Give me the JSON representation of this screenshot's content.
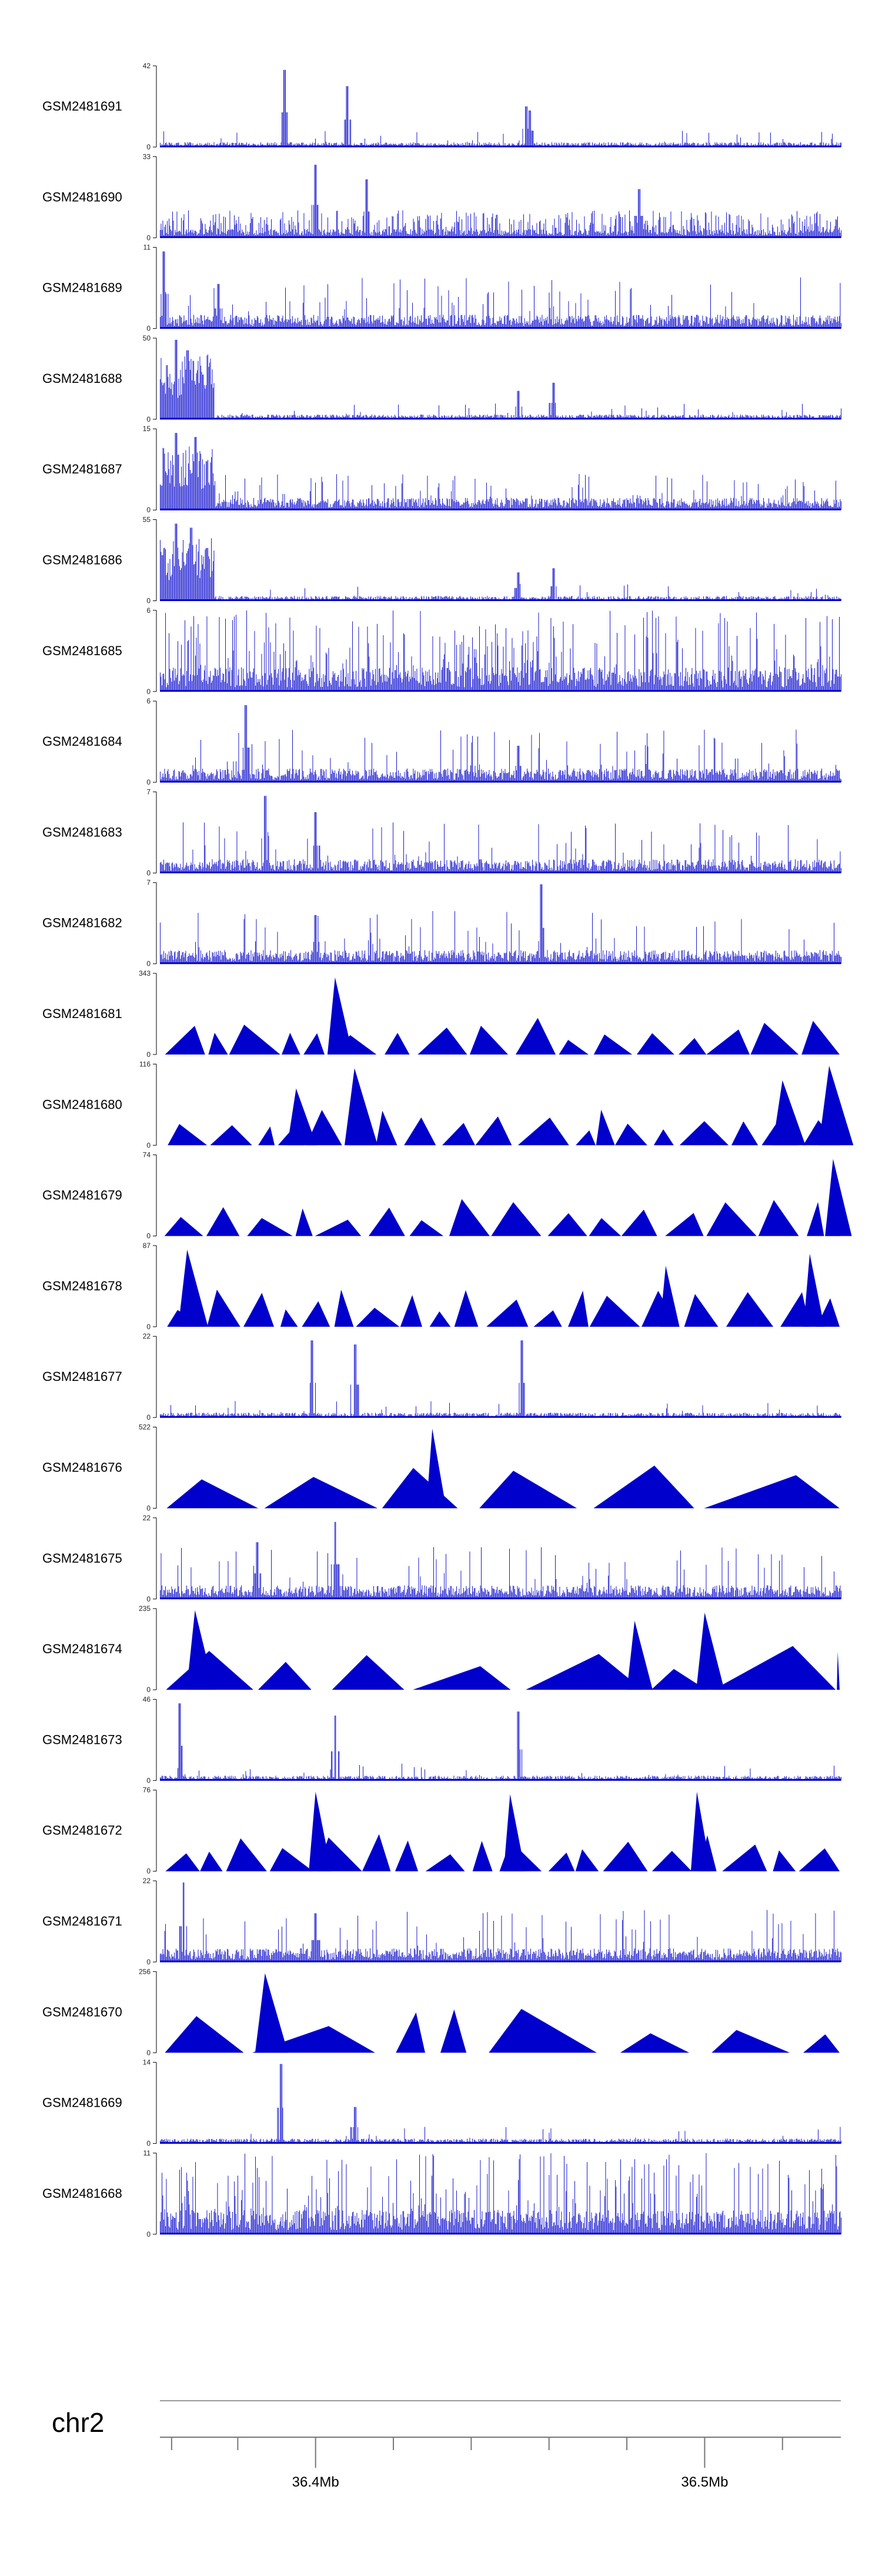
{
  "chart_data": {
    "type": "area",
    "description_kind": "genome coverage tracks",
    "series_color": "#0000cc",
    "chromosome": "chr2",
    "x_axis": {
      "range": [
        36.36,
        36.535
      ],
      "unit": "Mb",
      "major_ticks": [
        {
          "pos": 36.4,
          "label": "36.4Mb"
        },
        {
          "pos": 36.5,
          "label": "36.5Mb"
        }
      ],
      "minor_ticks": [
        36.363,
        36.38,
        36.42,
        36.44,
        36.46,
        36.48,
        36.52
      ]
    },
    "tracks": [
      {
        "name": "GSM2481691",
        "ymax": 42,
        "pattern": "sparse",
        "seed": 11,
        "peaks": [
          [
            36.392,
            0.95
          ],
          [
            36.408,
            0.75
          ],
          [
            36.454,
            0.5
          ],
          [
            36.455,
            0.45
          ]
        ]
      },
      {
        "name": "GSM2481690",
        "ymax": 33,
        "pattern": "dense",
        "seed": 12,
        "peaks": [
          [
            36.4,
            0.9
          ],
          [
            36.413,
            0.72
          ],
          [
            36.483,
            0.6
          ]
        ]
      },
      {
        "name": "GSM2481689",
        "ymax": 11,
        "pattern": "mid",
        "seed": 13,
        "peaks": [
          [
            36.361,
            0.95
          ],
          [
            36.375,
            0.55
          ]
        ]
      },
      {
        "name": "GSM2481688",
        "ymax": 50,
        "pattern": "cluster",
        "seed": 14,
        "peaks": [
          [
            36.364,
            0.98
          ],
          [
            36.367,
            0.85
          ],
          [
            36.371,
            0.55
          ],
          [
            36.452,
            0.35
          ],
          [
            36.461,
            0.45
          ]
        ]
      },
      {
        "name": "GSM2481687",
        "ymax": 15,
        "pattern": "cluster-dense",
        "seed": 15,
        "peaks": [
          [
            36.364,
            0.95
          ],
          [
            36.369,
            0.9
          ],
          [
            36.372,
            0.6
          ]
        ]
      },
      {
        "name": "GSM2481686",
        "ymax": 55,
        "pattern": "cluster",
        "seed": 16,
        "peaks": [
          [
            36.364,
            0.95
          ],
          [
            36.368,
            0.9
          ],
          [
            36.372,
            0.65
          ],
          [
            36.452,
            0.35
          ],
          [
            36.461,
            0.4
          ]
        ]
      },
      {
        "name": "GSM2481685",
        "ymax": 6,
        "pattern": "spiky",
        "seed": 17,
        "peaks": []
      },
      {
        "name": "GSM2481684",
        "ymax": 6,
        "pattern": "mid",
        "seed": 18,
        "peaks": [
          [
            36.382,
            0.95
          ],
          [
            36.452,
            0.45
          ]
        ]
      },
      {
        "name": "GSM2481683",
        "ymax": 7,
        "pattern": "mid",
        "seed": 19,
        "peaks": [
          [
            36.387,
            0.95
          ],
          [
            36.4,
            0.75
          ]
        ]
      },
      {
        "name": "GSM2481682",
        "ymax": 7,
        "pattern": "mid",
        "seed": 20,
        "peaks": [
          [
            36.458,
            0.98
          ],
          [
            36.4,
            0.6
          ]
        ]
      },
      {
        "name": "GSM2481681",
        "ymax": 343,
        "pattern": "tri",
        "seed": 21,
        "peaks": [
          [
            36.405,
            0.95
          ]
        ]
      },
      {
        "name": "GSM2481680",
        "ymax": 116,
        "pattern": "tri",
        "seed": 22,
        "peaks": [
          [
            36.41,
            0.95
          ],
          [
            36.395,
            0.7
          ],
          [
            36.52,
            0.8
          ],
          [
            36.532,
            0.98
          ]
        ]
      },
      {
        "name": "GSM2481679",
        "ymax": 74,
        "pattern": "tri",
        "seed": 23,
        "peaks": [
          [
            36.533,
            0.95
          ]
        ]
      },
      {
        "name": "GSM2481678",
        "ymax": 87,
        "pattern": "tri",
        "seed": 24,
        "peaks": [
          [
            36.367,
            0.95
          ],
          [
            36.49,
            0.75
          ],
          [
            36.527,
            0.9
          ]
        ]
      },
      {
        "name": "GSM2481677",
        "ymax": 22,
        "pattern": "sparse",
        "seed": 25,
        "peaks": [
          [
            36.399,
            0.95
          ],
          [
            36.41,
            0.9
          ],
          [
            36.453,
            0.95
          ]
        ]
      },
      {
        "name": "GSM2481676",
        "ymax": 522,
        "pattern": "tri-sparse",
        "seed": 26,
        "peaks": [
          [
            36.43,
            0.98
          ]
        ]
      },
      {
        "name": "GSM2481675",
        "ymax": 22,
        "pattern": "mid",
        "seed": 27,
        "peaks": [
          [
            36.405,
            0.95
          ],
          [
            36.385,
            0.7
          ]
        ]
      },
      {
        "name": "GSM2481674",
        "ymax": 235,
        "pattern": "tri-sparse",
        "seed": 28,
        "peaks": [
          [
            36.369,
            0.98
          ],
          [
            36.5,
            0.95
          ],
          [
            36.482,
            0.85
          ]
        ]
      },
      {
        "name": "GSM2481673",
        "ymax": 46,
        "pattern": "sparse",
        "seed": 29,
        "peaks": [
          [
            36.365,
            0.95
          ],
          [
            36.405,
            0.8
          ],
          [
            36.452,
            0.85
          ]
        ]
      },
      {
        "name": "GSM2481672",
        "ymax": 76,
        "pattern": "tri",
        "seed": 30,
        "peaks": [
          [
            36.4,
            0.98
          ],
          [
            36.45,
            0.95
          ],
          [
            36.498,
            0.98
          ]
        ]
      },
      {
        "name": "GSM2481671",
        "ymax": 22,
        "pattern": "mid",
        "seed": 31,
        "peaks": [
          [
            36.366,
            0.98
          ],
          [
            36.4,
            0.6
          ]
        ]
      },
      {
        "name": "GSM2481670",
        "ymax": 256,
        "pattern": "tri-sparse",
        "seed": 32,
        "peaks": [
          [
            36.387,
            0.98
          ]
        ]
      },
      {
        "name": "GSM2481669",
        "ymax": 14,
        "pattern": "sparse",
        "seed": 33,
        "peaks": [
          [
            36.391,
            0.98
          ],
          [
            36.41,
            0.45
          ]
        ]
      },
      {
        "name": "GSM2481668",
        "ymax": 11,
        "pattern": "spiky",
        "seed": 34,
        "peaks": []
      }
    ]
  }
}
